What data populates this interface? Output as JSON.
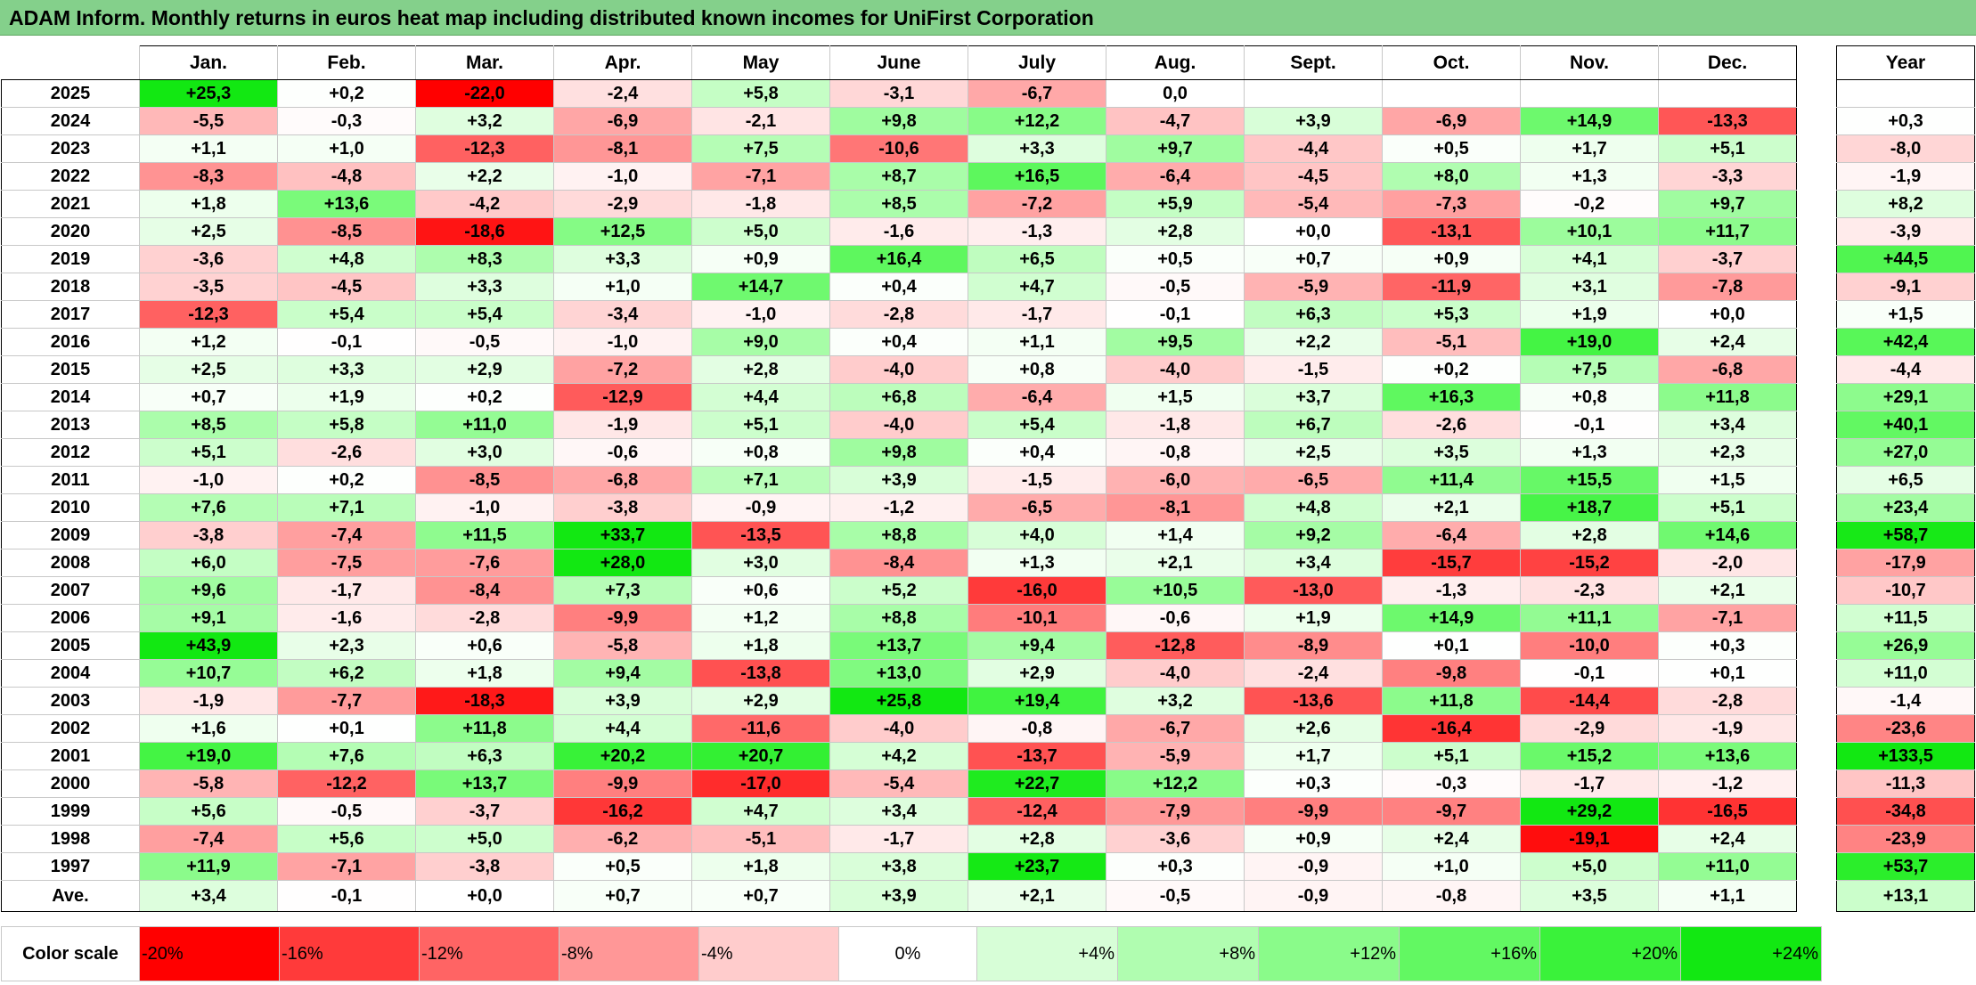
{
  "title": "ADAM Inform. Monthly returns in euros heat map including distributed known incomes for UniFirst Corporation",
  "chart_data": {
    "type": "heatmap",
    "title": "ADAM Inform. Monthly returns in euros heat map including distributed known incomes for UniFirst Corporation",
    "columns": [
      "Jan.",
      "Feb.",
      "Mar.",
      "Apr.",
      "May",
      "June",
      "July",
      "Aug.",
      "Sept.",
      "Oct.",
      "Nov.",
      "Dec."
    ],
    "year_header": "Year",
    "rows": [
      {
        "year": "2025",
        "months": [
          "+25,3",
          "+0,2",
          "-22,0",
          "-2,4",
          "+5,8",
          "-3,1",
          "-6,7",
          "0,0",
          "",
          "",
          "",
          ""
        ],
        "total": ""
      },
      {
        "year": "2024",
        "months": [
          "-5,5",
          "-0,3",
          "+3,2",
          "-6,9",
          "-2,1",
          "+9,8",
          "+12,2",
          "-4,7",
          "+3,9",
          "-6,9",
          "+14,9",
          "-13,3"
        ],
        "total": "+0,3"
      },
      {
        "year": "2023",
        "months": [
          "+1,1",
          "+1,0",
          "-12,3",
          "-8,1",
          "+7,5",
          "-10,6",
          "+3,3",
          "+9,7",
          "-4,4",
          "+0,5",
          "+1,7",
          "+5,1"
        ],
        "total": "-8,0"
      },
      {
        "year": "2022",
        "months": [
          "-8,3",
          "-4,8",
          "+2,2",
          "-1,0",
          "-7,1",
          "+8,7",
          "+16,5",
          "-6,4",
          "-4,5",
          "+8,0",
          "+1,3",
          "-3,3"
        ],
        "total": "-1,9"
      },
      {
        "year": "2021",
        "months": [
          "+1,8",
          "+13,6",
          "-4,2",
          "-2,9",
          "-1,8",
          "+8,5",
          "-7,2",
          "+5,9",
          "-5,4",
          "-7,3",
          "-0,2",
          "+9,7"
        ],
        "total": "+8,2"
      },
      {
        "year": "2020",
        "months": [
          "+2,5",
          "-8,5",
          "-18,6",
          "+12,5",
          "+5,0",
          "-1,6",
          "-1,3",
          "+2,8",
          "+0,0",
          "-13,1",
          "+10,1",
          "+11,7"
        ],
        "total": "-3,9"
      },
      {
        "year": "2019",
        "months": [
          "-3,6",
          "+4,8",
          "+8,3",
          "+3,3",
          "+0,9",
          "+16,4",
          "+6,5",
          "+0,5",
          "+0,7",
          "+0,9",
          "+4,1",
          "-3,7"
        ],
        "total": "+44,5"
      },
      {
        "year": "2018",
        "months": [
          "-3,5",
          "-4,5",
          "+3,3",
          "+1,0",
          "+14,7",
          "+0,4",
          "+4,7",
          "-0,5",
          "-5,9",
          "-11,9",
          "+3,1",
          "-7,8"
        ],
        "total": "-9,1"
      },
      {
        "year": "2017",
        "months": [
          "-12,3",
          "+5,4",
          "+5,4",
          "-3,4",
          "-1,0",
          "-2,8",
          "-1,7",
          "-0,1",
          "+6,3",
          "+5,3",
          "+1,9",
          "+0,0"
        ],
        "total": "+1,5"
      },
      {
        "year": "2016",
        "months": [
          "+1,2",
          "-0,1",
          "-0,5",
          "-1,0",
          "+9,0",
          "+0,4",
          "+1,1",
          "+9,5",
          "+2,2",
          "-5,1",
          "+19,0",
          "+2,4"
        ],
        "total": "+42,4"
      },
      {
        "year": "2015",
        "months": [
          "+2,5",
          "+3,3",
          "+2,9",
          "-7,2",
          "+2,8",
          "-4,0",
          "+0,8",
          "-4,0",
          "-1,5",
          "+0,2",
          "+7,5",
          "-6,8"
        ],
        "total": "-4,4"
      },
      {
        "year": "2014",
        "months": [
          "+0,7",
          "+1,9",
          "+0,2",
          "-12,9",
          "+4,4",
          "+6,8",
          "-6,4",
          "+1,5",
          "+3,7",
          "+16,3",
          "+0,8",
          "+11,8"
        ],
        "total": "+29,1"
      },
      {
        "year": "2013",
        "months": [
          "+8,5",
          "+5,8",
          "+11,0",
          "-1,9",
          "+5,1",
          "-4,0",
          "+5,4",
          "-1,8",
          "+6,7",
          "-2,6",
          "-0,1",
          "+3,4"
        ],
        "total": "+40,1"
      },
      {
        "year": "2012",
        "months": [
          "+5,1",
          "-2,6",
          "+3,0",
          "-0,6",
          "+0,8",
          "+9,8",
          "+0,4",
          "-0,8",
          "+2,5",
          "+3,5",
          "+1,3",
          "+2,3"
        ],
        "total": "+27,0"
      },
      {
        "year": "2011",
        "months": [
          "-1,0",
          "+0,2",
          "-8,5",
          "-6,8",
          "+7,1",
          "+3,9",
          "-1,5",
          "-6,0",
          "-6,5",
          "+11,4",
          "+15,5",
          "+1,5"
        ],
        "total": "+6,5"
      },
      {
        "year": "2010",
        "months": [
          "+7,6",
          "+7,1",
          "-1,0",
          "-3,8",
          "-0,9",
          "-1,2",
          "-6,5",
          "-8,1",
          "+4,8",
          "+2,1",
          "+18,7",
          "+5,1"
        ],
        "total": "+23,4"
      },
      {
        "year": "2009",
        "months": [
          "-3,8",
          "-7,4",
          "+11,5",
          "+33,7",
          "-13,5",
          "+8,8",
          "+4,0",
          "+1,4",
          "+9,2",
          "-6,4",
          "+2,8",
          "+14,6"
        ],
        "total": "+58,7"
      },
      {
        "year": "2008",
        "months": [
          "+6,0",
          "-7,5",
          "-7,6",
          "+28,0",
          "+3,0",
          "-8,4",
          "+1,3",
          "+2,1",
          "+3,4",
          "-15,7",
          "-15,2",
          "-2,0"
        ],
        "total": "-17,9"
      },
      {
        "year": "2007",
        "months": [
          "+9,6",
          "-1,7",
          "-8,4",
          "+7,3",
          "+0,6",
          "+5,2",
          "-16,0",
          "+10,5",
          "-13,0",
          "-1,3",
          "-2,3",
          "+2,1"
        ],
        "total": "-10,7"
      },
      {
        "year": "2006",
        "months": [
          "+9,1",
          "-1,6",
          "-2,8",
          "-9,9",
          "+1,2",
          "+8,8",
          "-10,1",
          "-0,6",
          "+1,9",
          "+14,9",
          "+11,1",
          "-7,1"
        ],
        "total": "+11,5"
      },
      {
        "year": "2005",
        "months": [
          "+43,9",
          "+2,3",
          "+0,6",
          "-5,8",
          "+1,8",
          "+13,7",
          "+9,4",
          "-12,8",
          "-8,9",
          "+0,1",
          "-10,0",
          "+0,3"
        ],
        "total": "+26,9"
      },
      {
        "year": "2004",
        "months": [
          "+10,7",
          "+6,2",
          "+1,8",
          "+9,4",
          "-13,8",
          "+13,0",
          "+2,9",
          "-4,0",
          "-2,4",
          "-9,8",
          "-0,1",
          "+0,1"
        ],
        "total": "+11,0"
      },
      {
        "year": "2003",
        "months": [
          "-1,9",
          "-7,7",
          "-18,3",
          "+3,9",
          "+2,9",
          "+25,8",
          "+19,4",
          "+3,2",
          "-13,6",
          "+11,8",
          "-14,4",
          "-2,8"
        ],
        "total": "-1,4"
      },
      {
        "year": "2002",
        "months": [
          "+1,6",
          "+0,1",
          "+11,8",
          "+4,4",
          "-11,6",
          "-4,0",
          "-0,8",
          "-6,7",
          "+2,6",
          "-16,4",
          "-2,9",
          "-1,9"
        ],
        "total": "-23,6"
      },
      {
        "year": "2001",
        "months": [
          "+19,0",
          "+7,6",
          "+6,3",
          "+20,2",
          "+20,7",
          "+4,2",
          "-13,7",
          "-5,9",
          "+1,7",
          "+5,1",
          "+15,2",
          "+13,6"
        ],
        "total": "+133,5"
      },
      {
        "year": "2000",
        "months": [
          "-5,8",
          "-12,2",
          "+13,7",
          "-9,9",
          "-17,0",
          "-5,4",
          "+22,7",
          "+12,2",
          "+0,3",
          "-0,3",
          "-1,7",
          "-1,2"
        ],
        "total": "-11,3"
      },
      {
        "year": "1999",
        "months": [
          "+5,6",
          "-0,5",
          "-3,7",
          "-16,2",
          "+4,7",
          "+3,4",
          "-12,4",
          "-7,9",
          "-9,9",
          "-9,7",
          "+29,2",
          "-16,5"
        ],
        "total": "-34,8"
      },
      {
        "year": "1998",
        "months": [
          "-7,4",
          "+5,6",
          "+5,0",
          "-6,2",
          "-5,1",
          "-1,7",
          "+2,8",
          "-3,6",
          "+0,9",
          "+2,4",
          "-19,1",
          "+2,4"
        ],
        "total": "-23,9"
      },
      {
        "year": "1997",
        "months": [
          "+11,9",
          "-7,1",
          "-3,8",
          "+0,5",
          "+1,8",
          "+3,8",
          "+23,7",
          "+0,3",
          "-0,9",
          "+1,0",
          "+5,0",
          "+11,0"
        ],
        "total": "+53,7"
      }
    ],
    "average": {
      "label": "Ave.",
      "months": [
        "+3,4",
        "-0,1",
        "+0,0",
        "+0,7",
        "+0,7",
        "+3,9",
        "+2,1",
        "-0,5",
        "-0,9",
        "-0,8",
        "+3,5",
        "+1,1"
      ],
      "total": "+13,1"
    },
    "color_scale": {
      "label": "Color scale",
      "stops": [
        "-20%",
        "-16%",
        "-12%",
        "-8%",
        "-4%",
        "0%",
        "+4%",
        "+8%",
        "+12%",
        "+16%",
        "+20%",
        "+24%"
      ]
    },
    "colors": {
      "title_bg": "#84d08b",
      "neg_20": "#ff0000",
      "neg_16": "#ff3a3a",
      "neg_12": "#ff6464",
      "neg_8": "#ff9797",
      "neg_4": "#ffcccc",
      "zero": "#ffffff",
      "pos_4": "#d7fed7",
      "pos_8": "#b0fdb0",
      "pos_12": "#8afb8a",
      "pos_16": "#62f862",
      "pos_20": "#3af23a",
      "pos_24": "#12e812"
    }
  }
}
